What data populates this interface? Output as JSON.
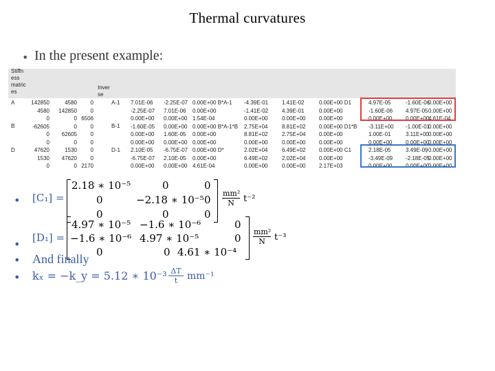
{
  "title": "Thermal curvatures",
  "intro": "In the present  example:",
  "sheet": {
    "header_label": [
      "Stiffn",
      "ess",
      "matric",
      "es"
    ],
    "inverse_label": [
      "Inver",
      "se"
    ],
    "row_labels": {
      "A": "A",
      "B": "B",
      "D": "D"
    },
    "inverse_tags": {
      "A": "A-1",
      "B": "B-1",
      "D": "D-1"
    },
    "stiffness": [
      [
        "142850",
        "4580",
        "0"
      ],
      [
        "4580",
        "142850",
        "0"
      ],
      [
        "0",
        "0",
        "6506"
      ],
      [
        "-62605",
        "0",
        "0"
      ],
      [
        "0",
        "62605",
        "0"
      ],
      [
        "0",
        "0",
        "0"
      ],
      [
        "47620",
        "1530",
        "0"
      ],
      [
        "1530",
        "47620",
        "0"
      ],
      [
        "0",
        "0",
        "2170"
      ]
    ],
    "inverse_cols": [
      [
        "7.01E-06",
        "-2.25E-07",
        "0.00E+00",
        "-1.60E-05",
        "0.00E+00",
        "0.00E+00",
        "2.10E-05",
        "-6.75E-07",
        "0.00E+00"
      ],
      [
        "-2.25E-07",
        "7.01E-06",
        "0.00E+00",
        "0.00E+00",
        "1.60E-05",
        "0.00E+00",
        "-6.75E-07",
        "2.10E-05",
        "0.00E+00"
      ],
      [
        "0.00E+00 B*A-1",
        "0.00E+00",
        "1.54E-04",
        "0.00E+00 B*A-1*B",
        "0.00E+00",
        "0.00E+00",
        "0.00E+00 D*",
        "0.00E+00",
        "4.61E-04"
      ]
    ],
    "product_cols": [
      [
        "-4.39E-01",
        "-1.41E-02",
        "0.00E+00",
        "2.75E+04",
        "8.81E+02",
        "0.00E+00",
        "2.02E+04",
        "6.49E+02",
        "0.00E+00"
      ],
      [
        "1.41E-02",
        "4.39E-01",
        "0.00E+00",
        "8.81E+02",
        "2.75E+04",
        "0.00E+00",
        "6.49E+02",
        "2.02E+04",
        "0.00E+00"
      ],
      [
        "0.00E+00 D1",
        "0.00E+00",
        "0.00E+00",
        "0.00E+00 D1*B",
        "0.00E+00",
        "0.00E+00",
        "0.00E+00 C1",
        "0.00E+00",
        "2.17E+03"
      ]
    ],
    "result_cols": [
      [
        "4.97E-05",
        "-1.60E-06",
        "0.00E+00",
        "-3.11E+00",
        "1.00E-01",
        "0.00E+00",
        "2.18E-05",
        "-3.49E-09",
        "0.00E+00"
      ],
      [
        "-1.60E-06",
        "4.97E-05",
        "0.00E+00",
        "-1.00E-01",
        "3.11E+00",
        "0.00E+00",
        "3.49E-09",
        "-2.18E-05",
        "0.00E+00"
      ],
      [
        "0.00E+00",
        "0.00E+00",
        "4.61E-04",
        "0.00E+00",
        "0.00E+00",
        "0.00E+00",
        "0.00E+00",
        "0.00E+00",
        "0.00E+00"
      ]
    ],
    "colors": {
      "highlight_red": "#e23b3b",
      "highlight_blue": "#3c73c9",
      "header_band": "#e6e6e6"
    }
  },
  "equations": {
    "c1": {
      "lhs": "[C₁] =",
      "matrix": [
        [
          "2.18 ∗ 10⁻⁵",
          "0",
          "0"
        ],
        [
          "0",
          "−2.18 ∗ 10⁻⁵",
          "0"
        ],
        [
          "0",
          "0",
          "0"
        ]
      ],
      "unit_num": "mm²",
      "unit_den": "N",
      "unit_tail": "t⁻²"
    },
    "d1": {
      "lhs": "[D₁] =",
      "matrix": [
        [
          "4.97 ∗ 10⁻⁵",
          "−1.6 ∗ 10⁻⁶",
          "0"
        ],
        [
          "−1.6 ∗ 10⁻⁶",
          "4.97 ∗ 10⁻⁵",
          "0"
        ],
        [
          "0",
          "0",
          "4.61 ∗ 10⁻⁴"
        ]
      ],
      "unit_num": "mm²",
      "unit_den": "N",
      "unit_tail": "t⁻³"
    },
    "finally": "And finally",
    "kx_lhs": "kₓ = −k_y = 5.12 ∗ 10⁻³",
    "kx_frac_num": "ΔT",
    "kx_frac_den": "t",
    "kx_unit": "mm⁻¹"
  },
  "icons": {
    "bullet": "bullet-dot-icon"
  }
}
